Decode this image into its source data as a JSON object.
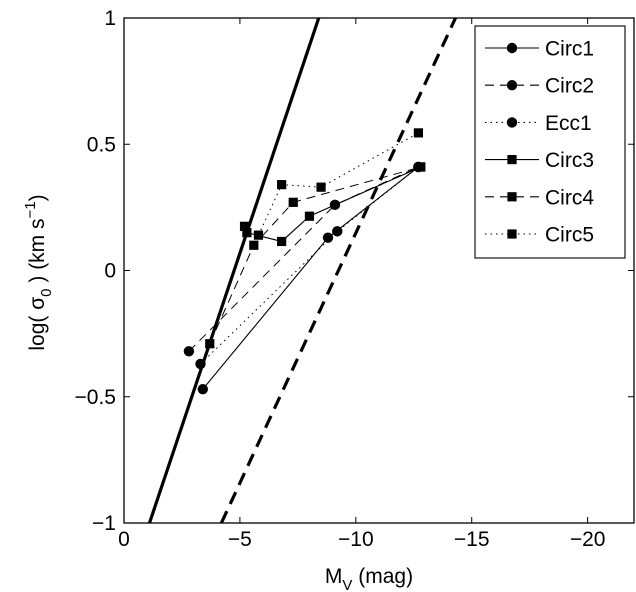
{
  "chart_data": {
    "type": "line",
    "xlabel": "M_V (mag)",
    "xlabel_main": "M",
    "xlabel_sub": "V",
    "xlabel_rest": " (mag)",
    "ylabel_pre": "log( σ",
    "ylabel_sub": "0",
    "ylabel_mid": " ) (km s",
    "ylabel_sup": "−1",
    "ylabel_post": ")",
    "xlim": [
      0,
      -22
    ],
    "ylim": [
      -1,
      1
    ],
    "x_reversed": true,
    "x_ticks": [
      0,
      -5,
      -10,
      -15,
      -20
    ],
    "x_tick_labels": [
      "0",
      "−5",
      "−10",
      "−15",
      "−20"
    ],
    "y_ticks": [
      1,
      0.5,
      0,
      -0.5,
      -1
    ],
    "y_tick_labels": [
      "1",
      "0.5",
      "0",
      "−0.5",
      "−1"
    ],
    "grid": false,
    "legend_position": "top-right",
    "reference_lines": [
      {
        "style": "solid",
        "points": [
          [
            -1.1,
            -1
          ],
          [
            -8.4,
            1
          ]
        ]
      },
      {
        "style": "dashed",
        "points": [
          [
            -4.2,
            -1
          ],
          [
            -14.3,
            1
          ]
        ]
      }
    ],
    "series": [
      {
        "name": "Circ1",
        "marker": "circle",
        "line": "solid",
        "x": [
          -3.4,
          -8.8,
          -12.7
        ],
        "y": [
          -0.47,
          0.13,
          0.41
        ]
      },
      {
        "name": "Circ2",
        "marker": "circle",
        "line": "dashed",
        "x": [
          -2.8,
          -9.1,
          -12.7
        ],
        "y": [
          -0.32,
          0.26,
          0.41
        ]
      },
      {
        "name": "Ecc1",
        "marker": "circle",
        "line": "dotted",
        "x": [
          -3.3,
          -9.2,
          -12.7
        ],
        "y": [
          -0.37,
          0.155,
          0.41
        ]
      },
      {
        "name": "Circ3",
        "marker": "square",
        "line": "solid",
        "x": [
          -5.3,
          -6.8,
          -8.0,
          -12.8
        ],
        "y": [
          0.15,
          0.115,
          0.215,
          0.41
        ]
      },
      {
        "name": "Circ4",
        "marker": "square",
        "line": "dashed",
        "x": [
          -3.7,
          -5.6,
          -7.3,
          -12.8
        ],
        "y": [
          -0.29,
          0.1,
          0.27,
          0.41
        ]
      },
      {
        "name": "Circ5",
        "marker": "square",
        "line": "dotted",
        "x": [
          -5.2,
          -5.8,
          -6.8,
          -8.5,
          -12.7
        ],
        "y": [
          0.175,
          0.14,
          0.34,
          0.33,
          0.545
        ]
      }
    ]
  }
}
